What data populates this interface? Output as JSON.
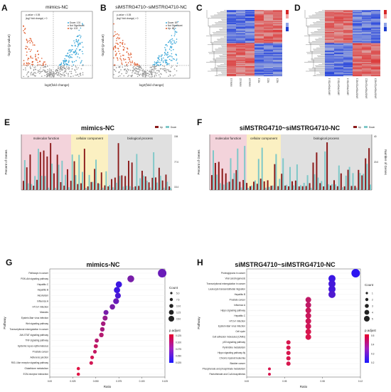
{
  "panels": {
    "A": {
      "label": "A",
      "title": "mimics-NC",
      "ylabel": "-log10 (p-value)",
      "xlabel": "log2(fold change)",
      "legend_lines": [
        "p-value < 0.05",
        "|log2 fold change| > 0"
      ],
      "legend_items": [
        "Down: 101",
        "Not Significant",
        "Up: 103"
      ]
    },
    "B": {
      "label": "B",
      "title": "siMSTRG4710~siMSTRG4710-NC",
      "ylabel": "-log10 (p-value)",
      "xlabel": "log2(fold change)",
      "legend_lines": [
        "p-value < 0.05",
        "|log2 fold change| > 0"
      ],
      "legend_items": [
        "Down: 89",
        "Not Significant",
        "Up: 88"
      ]
    },
    "C": {
      "label": "C",
      "samples": [
        "mimics1",
        "mimics2",
        "mimics3",
        "NC1",
        "NC2",
        "NC3"
      ]
    },
    "D": {
      "label": "D",
      "samples": [
        "siMSTRG4710-1",
        "siMSTRG4710-2",
        "siMSTRG4710-3",
        "siMSTRG4710-NC1",
        "siMSTRG4710-NC2",
        "siMSTRG4710-NC3"
      ]
    },
    "E": {
      "label": "E",
      "title": "mimics-NC",
      "ylabel": "Percent of Genes",
      "categories": [
        "molecular function",
        "cellular component",
        "biological process"
      ],
      "legend": [
        "Up",
        "Down"
      ],
      "right_ticks": [
        "154",
        "77.0",
        "15.4"
      ]
    },
    "F": {
      "label": "F",
      "title": "siMSTRG4710~siMSTRG4710-NC",
      "ylabel": "Percent of Genes",
      "y2label": "Number of Genes",
      "categories": [
        "molecular function",
        "cellular component",
        "biological process"
      ],
      "legend": [
        "Up",
        "Down"
      ],
      "right_ticks": [
        "40",
        "20.0"
      ]
    },
    "G": {
      "label": "G",
      "title": "mimics-NC",
      "ylabel": "Pathway",
      "xlabel": "Ratio",
      "pathways": [
        "Pathways in cancer",
        "PI3K-Akt signaling pathway",
        "Hepatitis C",
        "Hepatitis B",
        "Alcoholism",
        "Influenza A",
        "HTLV-I infection",
        "Measles",
        "Epstein-Barr virus infection",
        "Wnt signaling pathway",
        "Transcriptional misregulation in cancer",
        "JAK-STAT signaling pathway",
        "TNF signaling pathway",
        "Systemic lupus erythematosus",
        "Prostate cancer",
        "Adherens junction",
        "RIG-I-like receptor signaling pathway",
        "Glutathione metabolism",
        "ECM-receptor interaction"
      ],
      "xticks": [
        "0.00",
        "0.025",
        "0.050",
        "0.075",
        "0.100",
        "0.125"
      ],
      "count_title": "Count",
      "count_values": [
        "5.0",
        "7.5",
        "10.0",
        "12.5",
        "15.0"
      ],
      "padj_title": "p.adjust",
      "padj_values": [
        "0.125",
        "0.100",
        "0.075",
        "0.050",
        "0.025"
      ]
    },
    "H": {
      "label": "H",
      "title": "siMSTRG4710~siMSTRG4710-NC",
      "ylabel": "Pathway",
      "xlabel": "Ratio",
      "pathways": [
        "Proteoglycans in cancer",
        "Viral carcinogenesis",
        "Transcriptional misregulation in cancer",
        "Leukocyte transendothelial migration",
        "Hepatitis B",
        "Prostate cancer",
        "Influenza A",
        "Hippo signaling pathway",
        "Hepatitis C",
        "HTLV-I infection",
        "Epstein-Barr virus infection",
        "Cell cycle",
        "Cell adhesion molecules (CAMs)",
        "p53 signaling pathway",
        "Pyrimidine metabolism",
        "Hippo signaling pathway-fly",
        "Chronic myeloid leukemia",
        "Bladder cancer",
        "Phosphonate and phosphinate metabolism",
        "Pantothenate and CoA biosynthesis"
      ],
      "xticks": [
        "0.00",
        "0.05",
        "0.08",
        "0.12"
      ],
      "count_title": "Count",
      "count_values": [
        "1",
        "2",
        "3",
        "4",
        "5"
      ],
      "padj_title": "p.adjust",
      "padj_values": [
        "0.5",
        "0.4",
        "0.3",
        "0.2"
      ]
    }
  },
  "chart_data": [
    {
      "type": "scatter",
      "panel": "G",
      "title": "mimics-NC",
      "xlabel": "Ratio",
      "ylabel": "Pathway",
      "categories": [
        "Pathways in cancer",
        "PI3K-Akt signaling pathway",
        "Hepatitis C",
        "Hepatitis B",
        "Alcoholism",
        "Influenza A",
        "HTLV-I infection",
        "Measles",
        "Epstein-Barr virus infection",
        "Wnt signaling pathway",
        "Transcriptional misregulation in cancer",
        "JAK-STAT signaling pathway",
        "TNF signaling pathway",
        "Systemic lupus erythematosus",
        "Prostate cancer",
        "Adherens junction",
        "RIG-I-like receptor signaling pathway",
        "Glutathione metabolism",
        "ECM-receptor interaction"
      ],
      "x": [
        0.122,
        0.088,
        0.075,
        0.073,
        0.074,
        0.072,
        0.068,
        0.061,
        0.06,
        0.058,
        0.057,
        0.056,
        0.051,
        0.05,
        0.049,
        0.046,
        0.045,
        0.031,
        0.031
      ],
      "size": [
        16,
        12,
        11,
        11,
        10,
        10,
        9,
        8,
        8,
        7,
        7,
        7,
        6,
        6,
        5,
        5,
        5,
        4,
        4
      ],
      "p_adjust": [
        0.05,
        0.06,
        0.02,
        0.02,
        0.03,
        0.05,
        0.06,
        0.06,
        0.08,
        0.09,
        0.09,
        0.1,
        0.1,
        0.11,
        0.11,
        0.12,
        0.12,
        0.13,
        0.13
      ]
    },
    {
      "type": "scatter",
      "panel": "H",
      "title": "siMSTRG4710~siMSTRG4710-NC",
      "xlabel": "Ratio",
      "ylabel": "Pathway",
      "categories": [
        "Proteoglycans in cancer",
        "Viral carcinogenesis",
        "Transcriptional misregulation in cancer",
        "Leukocyte transendothelial migration",
        "Hepatitis B",
        "Prostate cancer",
        "Influenza A",
        "Hippo signaling pathway",
        "Hepatitis C",
        "HTLV-I infection",
        "Epstein-Barr virus infection",
        "Cell cycle",
        "Cell adhesion molecules (CAMs)",
        "p53 signaling pathway",
        "Pyrimidine metabolism",
        "Hippo signaling pathway-fly",
        "Chronic myeloid leukemia",
        "Bladder cancer",
        "Phosphonate and phosphinate metabolism",
        "Pantothenate and CoA biosynthesis"
      ],
      "x": [
        0.115,
        0.09,
        0.09,
        0.09,
        0.09,
        0.065,
        0.065,
        0.065,
        0.065,
        0.065,
        0.065,
        0.065,
        0.065,
        0.044,
        0.044,
        0.044,
        0.044,
        0.044,
        0.024,
        0.024
      ],
      "size": [
        5,
        4,
        4,
        4,
        4,
        3,
        3,
        3,
        3,
        3,
        3,
        3,
        3,
        2,
        2,
        2,
        2,
        2,
        1,
        1
      ],
      "p_adjust": [
        0.15,
        0.18,
        0.2,
        0.2,
        0.22,
        0.45,
        0.45,
        0.47,
        0.47,
        0.48,
        0.48,
        0.5,
        0.5,
        0.5,
        0.5,
        0.5,
        0.5,
        0.5,
        0.5,
        0.5
      ]
    }
  ]
}
